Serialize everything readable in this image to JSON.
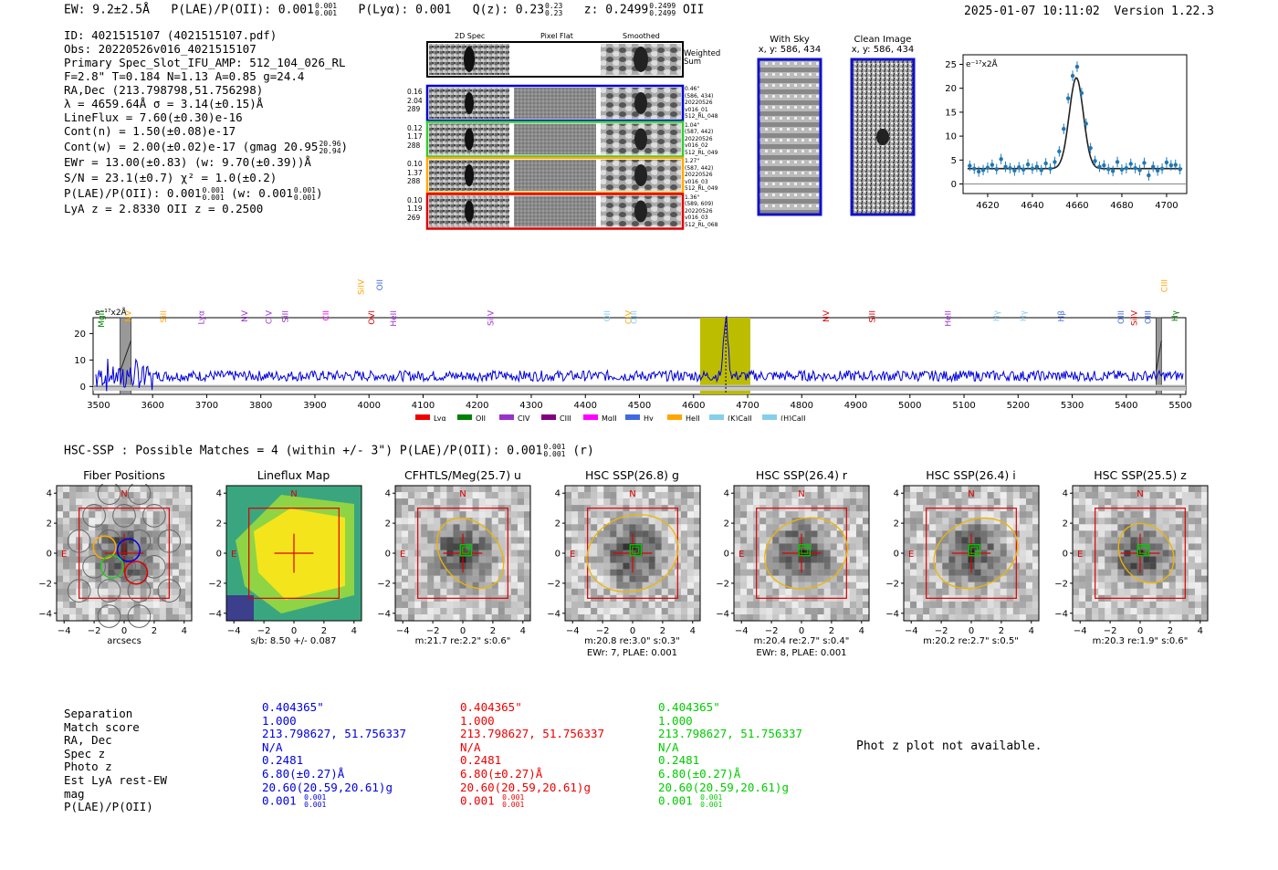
{
  "header": {
    "ew": "EW: 9.2±2.5Å",
    "plae_label": "P(LAE)/P(OII): 0.001",
    "plae_hi": "0.001",
    "plae_lo": "0.001",
    "plya": "P(Lyα): 0.001",
    "qz_label": "Q(z): 0.23",
    "qz_hi": "0.23",
    "qz_lo": "0.23",
    "z_label": "z: 0.2499",
    "z_hi": "0.2499",
    "z_lo": "0.2499",
    "z_line": "OII",
    "timestamp": "2025-01-07 10:11:02",
    "version": "Version 1.22.3"
  },
  "info": {
    "id": "ID: 4021515107 (4021515107.pdf)",
    "obs": "Obs: 20220526v016_4021515107",
    "primary": "Primary Spec_Slot_IFU_AMP: 512_104_026_RL",
    "params": "F=2.8\"  T=0.184  N=1.13  A=0.85  g=24.4",
    "radec": "RA,Dec (213.798798,51.756298)",
    "lambda": "λ = 4659.64Å   σ = 3.14(±0.15)Å",
    "lineflux": "LineFlux = 7.60(±0.30)e-16",
    "contn": "Cont(n) = 1.50(±0.08)e-17",
    "contw": "Cont(w) = 2.00(±0.02)e-17 (gmag 20.95",
    "contw_hi": "20.96",
    "contw_lo": "20.94",
    "contw_end": ")",
    "ewr": "EWr = 13.00(±0.83) (w: 9.70(±0.39))Å",
    "sn": "S/N = 23.1(±0.7)  χ² = 1.0(±0.2)",
    "plae": "P(LAE)/P(OII): 0.001",
    "plae_hi": "0.001",
    "plae_lo": "0.001",
    "plae_w": "(w: 0.001",
    "plae_w_hi": "0.001",
    "plae_w_lo": "0.001",
    "plae_end": ")",
    "lyaz": "LyA z = 2.8330   OII z = 0.2500"
  },
  "cutouts": {
    "col_2d": "2D Spec",
    "col_flat": "Pixel Flat",
    "col_smooth": "Smoothed",
    "weighted": "Weighted",
    "sum": "Sum",
    "rows": [
      {
        "left": [
          "0.16",
          "2.04",
          "289"
        ],
        "right": [
          "0.46\"",
          "(586, 434)",
          "20220526",
          "v016_01",
          "512_RL_048"
        ],
        "color": "#0000cc"
      },
      {
        "left": [
          "0.12",
          "1.17",
          "288"
        ],
        "right": [
          "1.04\"",
          "(587, 442)",
          "20220526",
          "v016_02",
          "512_RL_049"
        ],
        "color": "#33cc33"
      },
      {
        "left": [
          "0.10",
          "1.37",
          "288"
        ],
        "right": [
          "1.27\"",
          "(587, 442)",
          "20220526",
          "v016_03",
          "512_RL_049"
        ],
        "color": "#ffaa00"
      },
      {
        "left": [
          "0.10",
          "1.19",
          "269"
        ],
        "right": [
          "1.36\"",
          "(589, 609)",
          "20220526",
          "v016_03",
          "512_RL_068"
        ],
        "color": "#dd0000"
      }
    ],
    "with_sky": "With Sky",
    "with_sky_xy": "x, y: 586, 434",
    "clean": "Clean Image",
    "clean_xy": "x, y: 586, 434"
  },
  "fit_plot": {
    "unit": "e⁻¹⁷x2Å",
    "x_ticks": [
      "4620",
      "4640",
      "4660",
      "4680",
      "4700"
    ],
    "y_ticks": [
      "0",
      "5",
      "10",
      "15",
      "20",
      "25"
    ]
  },
  "spectrum": {
    "unit": "e⁻¹⁷x2Å",
    "y_ticks": [
      "20",
      "10",
      "0"
    ],
    "x_ticks": [
      "3500",
      "3600",
      "3700",
      "3800",
      "3900",
      "4000",
      "4100",
      "4200",
      "4300",
      "4400",
      "4500",
      "4600",
      "4700",
      "4800",
      "4900",
      "5000",
      "5100",
      "5200",
      "5300",
      "5400",
      "5500"
    ],
    "lines": [
      {
        "name": "MgII",
        "color": "#008000"
      },
      {
        "name": "NV",
        "color": "#ffa500"
      },
      {
        "name": "SiII",
        "color": "#ffa500"
      },
      {
        "name": "Lyα",
        "color": "#9932cc"
      },
      {
        "name": "NV",
        "color": "#9932cc"
      },
      {
        "name": "CIV",
        "color": "#9932cc"
      },
      {
        "name": "SiII",
        "color": "#9932cc"
      },
      {
        "name": "CII",
        "color": "#ff00ff"
      },
      {
        "name": "SiIV",
        "color": "#ffa500"
      },
      {
        "name": "OVI",
        "color": "#dd0000"
      },
      {
        "name": "OII",
        "color": "#4169e1"
      },
      {
        "name": "HeII",
        "color": "#9932cc"
      },
      {
        "name": "SiIV",
        "color": "#9932cc"
      },
      {
        "name": "OII",
        "color": "#87ceeb"
      },
      {
        "name": "CIV",
        "color": "#ffa500"
      },
      {
        "name": "OIII",
        "color": "#87ceeb"
      },
      {
        "name": "NV",
        "color": "#dd0000"
      },
      {
        "name": "SiII",
        "color": "#dd0000"
      },
      {
        "name": "HeII",
        "color": "#9932cc"
      },
      {
        "name": "Hγ",
        "color": "#87ceeb"
      },
      {
        "name": "Hγ",
        "color": "#87ceeb"
      },
      {
        "name": "Hβ",
        "color": "#4169e1"
      },
      {
        "name": "OIII",
        "color": "#4169e1"
      },
      {
        "name": "SiIV",
        "color": "#dd0000"
      },
      {
        "name": "OIII",
        "color": "#4169e1"
      },
      {
        "name": "CIII",
        "color": "#ffa500"
      },
      {
        "name": "Hγ",
        "color": "#008000"
      }
    ],
    "legend": [
      {
        "name": "Lyα",
        "color": "#ee0000"
      },
      {
        "name": "OII",
        "color": "#008000"
      },
      {
        "name": "CIV",
        "color": "#9932cc"
      },
      {
        "name": "CIII",
        "color": "#800080"
      },
      {
        "name": "MgII",
        "color": "#ff00ff"
      },
      {
        "name": "Hγ",
        "color": "#4169e1"
      },
      {
        "name": "HeII",
        "color": "#ffa500"
      },
      {
        "name": "(K)CaII",
        "color": "#87ceeb"
      },
      {
        "name": "(H)CaII",
        "color": "#87ceeb"
      }
    ]
  },
  "hsc": {
    "title": "HSC-SSP : Possible Matches = 4 (within +/- 3\")  P(LAE)/P(OII): 0.001",
    "title_hi": "0.001",
    "title_lo": "0.001",
    "title_end": "(r)",
    "tiles": [
      {
        "title": "Fiber Positions",
        "cap1": "arcsecs",
        "cap2": ""
      },
      {
        "title": "Lineflux Map",
        "cap1": "s/b: 8.50 +/- 0.087",
        "cap2": ""
      },
      {
        "title": "CFHTLS/Meg(25.7) u",
        "cap1": "m:21.7  re:2.2\"  s:0.6\"",
        "cap2": ""
      },
      {
        "title": "HSC SSP(26.8) g",
        "cap1": "m:20.8  re:3.0\"  s:0.3\"",
        "cap2": "EWr: 7, PLAE: 0.001"
      },
      {
        "title": "HSC SSP(26.4) r",
        "cap1": "m:20.4  re:2.7\"  s:0.4\"",
        "cap2": "EWr: 8, PLAE: 0.001"
      },
      {
        "title": "HSC SSP(26.4) i",
        "cap1": "m:20.2  re:2.7\"  s:0.5\"",
        "cap2": ""
      },
      {
        "title": "HSC SSP(25.5) z",
        "cap1": "m:20.3  re:1.9\"  s:0.6\"",
        "cap2": ""
      }
    ],
    "axis_ticks": [
      "4",
      "2",
      "0",
      "−2",
      "−4"
    ],
    "n_label": "N",
    "e_label": "E"
  },
  "table": {
    "labels": [
      "Separation",
      "Match score",
      "RA, Dec",
      "Spec z",
      "Photo z",
      "Est LyA rest-EW",
      "mag",
      "P(LAE)/P(OII)"
    ],
    "columns": [
      {
        "color": "#0000dd",
        "values": [
          "0.404365\"",
          "1.000",
          "213.798627, 51.756337",
          "N/A",
          "0.2481",
          "6.80(±0.27)Å",
          "20.60(20.59,20.61)g",
          "0.001"
        ],
        "hi": "0.001",
        "lo": "0.001"
      },
      {
        "color": "#ee0000",
        "values": [
          "0.404365\"",
          "1.000",
          "213.798627, 51.756337",
          "N/A",
          "0.2481",
          "6.80(±0.27)Å",
          "20.60(20.59,20.61)g",
          "0.001"
        ],
        "hi": "0.001",
        "lo": "0.001"
      },
      {
        "color": "#00cc00",
        "values": [
          "0.404365\"",
          "1.000",
          "213.798627, 51.756337",
          "N/A",
          "0.2481",
          "6.80(±0.27)Å",
          "20.60(20.59,20.61)g",
          "0.001"
        ],
        "hi": "0.001",
        "lo": "0.001"
      }
    ],
    "photz_note": "Phot z plot not available."
  },
  "chart_data": [
    {
      "type": "scatter",
      "title": "",
      "xlabel": "",
      "ylabel": "e⁻¹⁷x2Å",
      "xlim": [
        4609,
        4709
      ],
      "ylim": [
        -2,
        27
      ],
      "points_x": [
        4612,
        4614,
        4616,
        4618,
        4620,
        4622,
        4624,
        4626,
        4628,
        4630,
        4632,
        4634,
        4636,
        4638,
        4640,
        4642,
        4644,
        4646,
        4648,
        4650,
        4652,
        4654,
        4656,
        4658,
        4660,
        4662,
        4664,
        4666,
        4668,
        4670,
        4672,
        4674,
        4676,
        4678,
        4680,
        4682,
        4684,
        4686,
        4688,
        4690,
        4692,
        4694,
        4696,
        4698,
        4700,
        4702,
        4704,
        4706
      ],
      "points_y": [
        3.8,
        3.2,
        2.6,
        2.9,
        3.4,
        4.0,
        3.1,
        5.2,
        3.6,
        3.3,
        2.8,
        3.5,
        3.0,
        4.1,
        3.2,
        3.6,
        2.9,
        4.3,
        3.2,
        4.6,
        6.8,
        11.5,
        17.9,
        22.6,
        24.5,
        19.0,
        12.6,
        7.5,
        4.8,
        3.6,
        3.9,
        3.1,
        2.7,
        4.6,
        3.0,
        3.3,
        4.2,
        3.3,
        2.9,
        4.4,
        1.8,
        3.6,
        2.8,
        3.2,
        4.5,
        3.9,
        4.0,
        3.1
      ],
      "fit": {
        "continuum": 3.2,
        "amplitude": 19.0,
        "center": 4659.64,
        "sigma": 3.14
      }
    },
    {
      "type": "line",
      "title": "",
      "ylabel": "e⁻¹⁷x2Å",
      "xlim": [
        3490,
        5510
      ],
      "ylim": [
        -3,
        26
      ],
      "highlight_band": [
        4612,
        4705
      ],
      "peak_wavelength": 4659.64,
      "peak_value": 22,
      "masked_regions": [
        [
          3540,
          3560
        ],
        [
          5455,
          5465
        ]
      ],
      "baseline_level": 4
    }
  ]
}
